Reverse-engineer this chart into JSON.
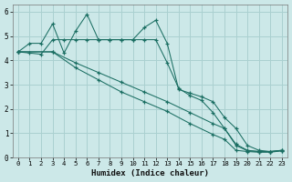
{
  "xlabel": "Humidex (Indice chaleur)",
  "xlim": [
    -0.5,
    23.5
  ],
  "ylim": [
    0,
    6.3
  ],
  "yticks": [
    0,
    1,
    2,
    3,
    4,
    5,
    6
  ],
  "xticks": [
    0,
    1,
    2,
    3,
    4,
    5,
    6,
    7,
    8,
    9,
    10,
    11,
    12,
    13,
    14,
    15,
    16,
    17,
    18,
    19,
    20,
    21,
    22,
    23
  ],
  "background_color": "#cce8e8",
  "grid_color": "#aad0d0",
  "line_color": "#1a6e62",
  "line1_x": [
    0,
    1,
    2,
    3,
    4,
    5,
    6,
    7,
    8,
    9,
    10,
    11,
    12,
    13,
    14,
    15,
    16,
    17,
    18,
    19,
    20,
    21,
    22,
    23
  ],
  "line1_y": [
    4.35,
    4.7,
    4.7,
    5.5,
    4.3,
    5.2,
    5.9,
    4.85,
    4.85,
    4.85,
    4.85,
    5.35,
    5.65,
    4.7,
    2.8,
    2.65,
    2.5,
    2.3,
    1.65,
    1.2,
    0.5,
    0.3,
    0.25,
    0.3
  ],
  "line2_x": [
    0,
    1,
    2,
    3,
    4,
    5,
    6,
    7,
    8,
    9,
    10,
    11,
    12,
    13,
    14,
    15,
    16,
    17,
    18,
    19,
    20,
    21,
    22,
    23
  ],
  "line2_y": [
    4.35,
    4.3,
    4.25,
    4.85,
    4.85,
    4.85,
    4.85,
    4.85,
    4.85,
    4.85,
    4.85,
    4.85,
    4.85,
    3.9,
    2.85,
    2.55,
    2.35,
    1.85,
    1.2,
    0.55,
    0.3,
    0.25,
    0.25,
    0.3
  ],
  "line3_x": [
    0,
    3,
    5,
    7,
    9,
    11,
    13,
    15,
    17,
    18,
    19,
    20,
    21,
    22,
    23
  ],
  "line3_y": [
    4.35,
    4.35,
    3.9,
    3.5,
    3.1,
    2.7,
    2.3,
    1.85,
    1.4,
    1.2,
    0.5,
    0.28,
    0.25,
    0.25,
    0.28
  ],
  "line4_x": [
    0,
    3,
    5,
    7,
    9,
    11,
    13,
    15,
    17,
    18,
    19,
    20,
    21,
    22,
    23
  ],
  "line4_y": [
    4.35,
    4.35,
    3.7,
    3.2,
    2.7,
    2.3,
    1.9,
    1.4,
    0.95,
    0.75,
    0.3,
    0.25,
    0.22,
    0.22,
    0.28
  ]
}
